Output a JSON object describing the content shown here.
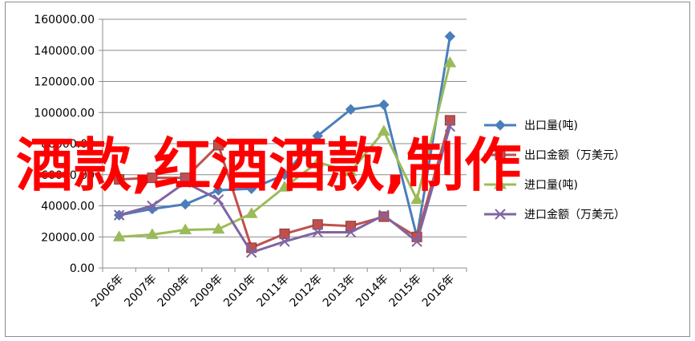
{
  "chart_data": {
    "type": "line",
    "categories": [
      "2006年",
      "2007年",
      "2008年",
      "2009年",
      "2010年",
      "2011年",
      "2012年",
      "2013年",
      "2014年",
      "2015年",
      "2016年"
    ],
    "ylim": [
      0,
      160000
    ],
    "yticks": [
      "0.00",
      "20000.00",
      "40000.00",
      "60000.00",
      "80000.00",
      "100000.00",
      "120000.00",
      "140000.00",
      "160000.00"
    ],
    "grid": true,
    "legend_position": "right",
    "series": [
      {
        "name": "出口量(吨)",
        "color": "#4a7ebb",
        "marker": "diamond",
        "values": [
          34000,
          38000,
          41000,
          50000,
          51000,
          60000,
          85000,
          102000,
          105000,
          20000,
          149000
        ]
      },
      {
        "name": "出口金额（万美元）",
        "color": "#c0504d",
        "marker": "square",
        "values": [
          57000,
          58000,
          58000,
          79000,
          13000,
          22000,
          28000,
          27000,
          33000,
          20000,
          95000
        ]
      },
      {
        "name": "进口量(吨)",
        "color": "#9bbb59",
        "marker": "triangle",
        "values": [
          20000,
          21500,
          24500,
          25000,
          35000,
          52000,
          68000,
          62000,
          88000,
          44000,
          132000
        ]
      },
      {
        "name": "进口金额（万美元）",
        "color": "#8064a2",
        "marker": "x",
        "values": [
          34000,
          40000,
          55000,
          44000,
          10000,
          17000,
          23000,
          23000,
          34000,
          17000,
          91000
        ]
      }
    ]
  },
  "overlay_text": "酒款,红酒酒款,制作"
}
